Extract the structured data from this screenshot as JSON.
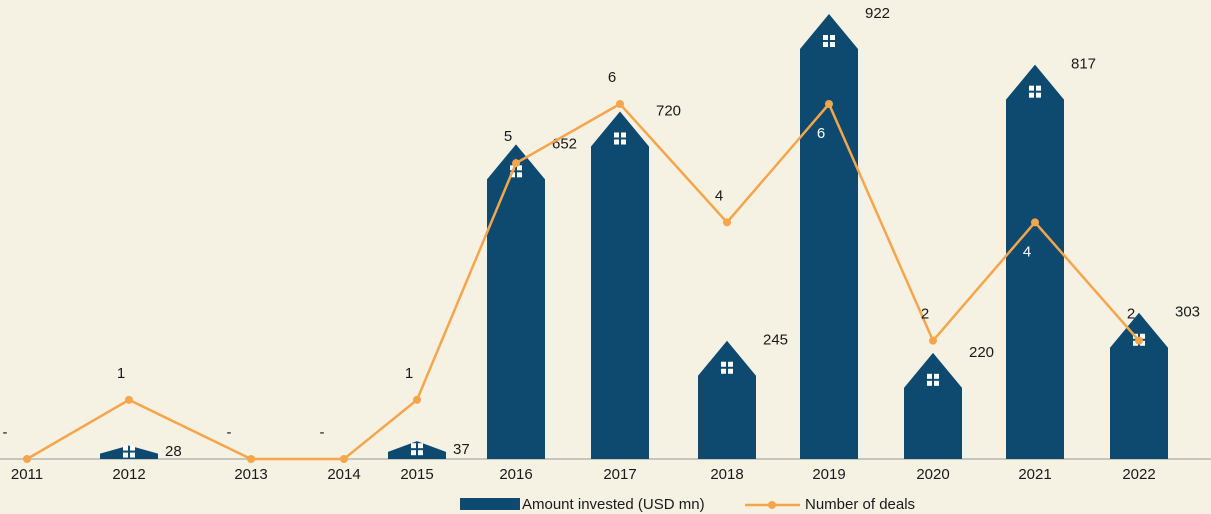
{
  "chart_data": {
    "type": "bar-line",
    "categories": [
      "2011",
      "2012",
      "2013",
      "2014",
      "2015",
      "2016",
      "2017",
      "2018",
      "2019",
      "2020",
      "2021",
      "2022"
    ],
    "series": [
      {
        "name": "Amount invested (USD mn)",
        "type": "bar",
        "color": "#0e4a70",
        "values": [
          null,
          28,
          null,
          null,
          37,
          652,
          720,
          245,
          922,
          220,
          817,
          303
        ]
      },
      {
        "name": "Number of deals",
        "type": "line",
        "color": "#f5a54a",
        "values": [
          0,
          1,
          0,
          0,
          1,
          5,
          6,
          4,
          6,
          2,
          4,
          2
        ],
        "value_labels": [
          "-",
          "1",
          "-",
          "-",
          "1",
          "5",
          "6",
          "4",
          "6",
          "2",
          "4",
          "2"
        ]
      }
    ]
  }
}
